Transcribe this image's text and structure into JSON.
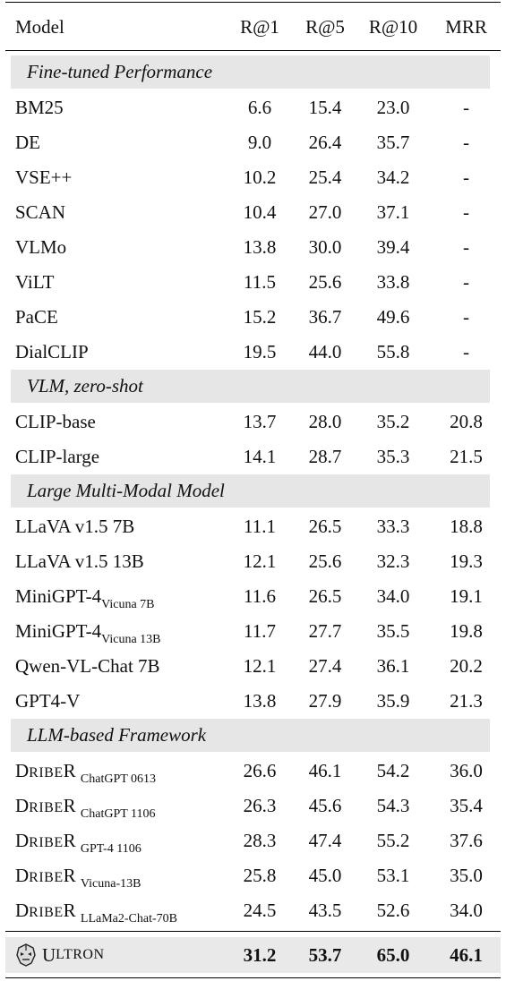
{
  "header": {
    "model": "Model",
    "r1": "R@1",
    "r5": "R@5",
    "r10": "R@10",
    "mrr": "MRR"
  },
  "sections": [
    {
      "title": "Fine-tuned Performance",
      "rows": [
        {
          "model": "BM25",
          "r1": "6.6",
          "r5": "15.4",
          "r10": "23.0",
          "mrr": "-"
        },
        {
          "model": "DE",
          "r1": "9.0",
          "r5": "26.4",
          "r10": "35.7",
          "mrr": "-"
        },
        {
          "model": "VSE++",
          "r1": "10.2",
          "r5": "25.4",
          "r10": "34.2",
          "mrr": "-"
        },
        {
          "model": "SCAN",
          "r1": "10.4",
          "r5": "27.0",
          "r10": "37.1",
          "mrr": "-"
        },
        {
          "model": "VLMo",
          "r1": "13.8",
          "r5": "30.0",
          "r10": "39.4",
          "mrr": "-"
        },
        {
          "model": "ViLT",
          "r1": "11.5",
          "r5": "25.6",
          "r10": "33.8",
          "mrr": "-"
        },
        {
          "model": "PaCE",
          "r1": "15.2",
          "r5": "36.7",
          "r10": "49.6",
          "mrr": "-"
        },
        {
          "model": "DialCLIP",
          "r1": "19.5",
          "r5": "44.0",
          "r10": "55.8",
          "mrr": "-"
        }
      ]
    },
    {
      "title": "VLM, zero-shot",
      "rows": [
        {
          "model": "CLIP-base",
          "r1": "13.7",
          "r5": "28.0",
          "r10": "35.2",
          "mrr": "20.8"
        },
        {
          "model": "CLIP-large",
          "r1": "14.1",
          "r5": "28.7",
          "r10": "35.3",
          "mrr": "21.5"
        }
      ]
    },
    {
      "title": "Large Multi-Modal Model",
      "rows": [
        {
          "model": "LLaVA v1.5 7B",
          "r1": "11.1",
          "r5": "26.5",
          "r10": "33.3",
          "mrr": "18.8"
        },
        {
          "model": "LLaVA v1.5 13B",
          "r1": "12.1",
          "r5": "25.6",
          "r10": "32.3",
          "mrr": "19.3"
        },
        {
          "model": "MiniGPT-4",
          "sub": "Vicuna 7B",
          "r1": "11.6",
          "r5": "26.5",
          "r10": "34.0",
          "mrr": "19.1"
        },
        {
          "model": "MiniGPT-4",
          "sub": "Vicuna 13B",
          "r1": "11.7",
          "r5": "27.7",
          "r10": "35.5",
          "mrr": "19.8"
        },
        {
          "model": "Qwen-VL-Chat 7B",
          "r1": "12.1",
          "r5": "27.4",
          "r10": "36.1",
          "mrr": "20.2"
        },
        {
          "model": "GPT4-V",
          "r1": "13.8",
          "r5": "27.9",
          "r10": "35.9",
          "mrr": "21.3"
        }
      ]
    },
    {
      "title": "LLM-based Framework",
      "rows": [
        {
          "model_first": "D",
          "model_rest": "RIBE",
          "model_last": "R",
          "sub": "ChatGPT 0613",
          "r1": "26.6",
          "r5": "46.1",
          "r10": "54.2",
          "mrr": "36.0"
        },
        {
          "model_first": "D",
          "model_rest": "RIBE",
          "model_last": "R",
          "sub": "ChatGPT 1106",
          "r1": "26.3",
          "r5": "45.6",
          "r10": "54.3",
          "mrr": "35.4"
        },
        {
          "model_first": "D",
          "model_rest": "RIBE",
          "model_last": "R",
          "sub": "GPT-4 1106",
          "r1": "28.3",
          "r5": "47.4",
          "r10": "55.2",
          "mrr": "37.6"
        },
        {
          "model_first": "D",
          "model_rest": "RIBE",
          "model_last": "R",
          "sub": "Vicuna-13B",
          "r1": "25.8",
          "r5": "45.0",
          "r10": "53.1",
          "mrr": "35.0"
        },
        {
          "model_first": "D",
          "model_rest": "RIBE",
          "model_last": "R",
          "sub": "LLaMa2-Chat-70B",
          "r1": "24.5",
          "r5": "43.5",
          "r10": "52.6",
          "mrr": "34.0"
        }
      ]
    }
  ],
  "final": {
    "logo_icon": "robot-head-icon",
    "model_first": "U",
    "model_rest": "LTRON",
    "r1": "31.2",
    "r5": "53.7",
    "r10": "65.0",
    "mrr": "46.1"
  }
}
